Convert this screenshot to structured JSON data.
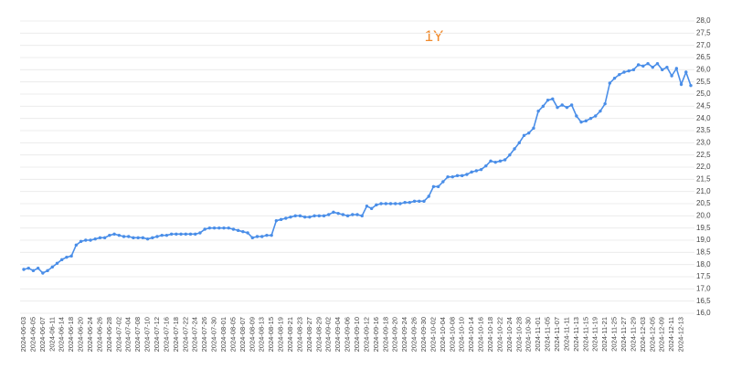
{
  "chart_data": {
    "type": "line",
    "title": "1Y",
    "categories": [
      "2024-06-03",
      null,
      "2024-06-05",
      null,
      "2024-06-07",
      null,
      "2024-06-11",
      null,
      "2024-06-14",
      null,
      "2024-06-18",
      null,
      "2024-06-20",
      null,
      "2024-06-24",
      null,
      "2024-06-26",
      null,
      "2024-06-28",
      null,
      "2024-07-02",
      null,
      "2024-07-04",
      null,
      "2024-07-08",
      null,
      "2024-07-10",
      null,
      "2024-07-12",
      null,
      "2024-07-16",
      null,
      "2024-07-18",
      null,
      "2024-07-22",
      null,
      "2024-07-24",
      null,
      "2024-07-26",
      null,
      "2024-07-30",
      null,
      "2024-08-01",
      null,
      "2024-08-05",
      null,
      "2024-08-07",
      null,
      "2024-08-09",
      null,
      "2024-08-13",
      null,
      "2024-08-15",
      null,
      "2024-08-19",
      null,
      "2024-08-21",
      null,
      "2024-08-23",
      null,
      "2024-08-27",
      null,
      "2024-08-29",
      null,
      "2024-09-02",
      null,
      "2024-09-04",
      null,
      "2024-09-06",
      null,
      "2024-09-10",
      null,
      "2024-09-12",
      null,
      "2024-09-16",
      null,
      "2024-09-18",
      null,
      "2024-09-20",
      null,
      "2024-09-24",
      null,
      "2024-09-26",
      null,
      "2024-09-30",
      null,
      "2024-10-02",
      null,
      "2024-10-04",
      null,
      "2024-10-08",
      null,
      "2024-10-10",
      null,
      "2024-10-14",
      null,
      "2024-10-16",
      null,
      "2024-10-18",
      null,
      "2024-10-22",
      null,
      "2024-10-24",
      null,
      "2024-10-28",
      null,
      "2024-10-30",
      null,
      "2024-11-01",
      null,
      "2024-11-05",
      null,
      "2024-11-07",
      null,
      "2024-11-11",
      null,
      "2024-11-13",
      null,
      "2024-11-15",
      null,
      "2024-11-19",
      null,
      "2024-11-21",
      null,
      "2024-11-25",
      null,
      "2024-11-27",
      null,
      "2024-11-29",
      null,
      "2024-12-03",
      null,
      "2024-12-05",
      null,
      "2024-12-09",
      null,
      "2024-12-11",
      null,
      "2024-12-13",
      null,
      null
    ],
    "series": [
      {
        "color": "#4a8ee8",
        "values": [
          17.8,
          17.85,
          17.75,
          17.85,
          17.65,
          17.75,
          17.9,
          18.05,
          18.2,
          18.3,
          18.35,
          18.8,
          18.95,
          19.0,
          19.0,
          19.05,
          19.1,
          19.1,
          19.2,
          19.25,
          19.2,
          19.15,
          19.15,
          19.1,
          19.1,
          19.1,
          19.05,
          19.1,
          19.15,
          19.2,
          19.2,
          19.25,
          19.25,
          19.25,
          19.25,
          19.25,
          19.25,
          19.3,
          19.45,
          19.5,
          19.5,
          19.5,
          19.5,
          19.5,
          19.45,
          19.4,
          19.35,
          19.3,
          19.1,
          19.15,
          19.15,
          19.2,
          19.2,
          19.8,
          19.85,
          19.9,
          19.95,
          20.0,
          20.0,
          19.95,
          19.95,
          20.0,
          20.0,
          20.0,
          20.05,
          20.15,
          20.1,
          20.05,
          20.0,
          20.05,
          20.05,
          20.0,
          20.4,
          20.3,
          20.45,
          20.5,
          20.5,
          20.5,
          20.5,
          20.5,
          20.55,
          20.55,
          20.6,
          20.6,
          20.6,
          20.8,
          21.2,
          21.2,
          21.4,
          21.6,
          21.6,
          21.65,
          21.65,
          21.7,
          21.8,
          21.85,
          21.9,
          22.05,
          22.25,
          22.2,
          22.25,
          22.3,
          22.5,
          22.75,
          23.0,
          23.3,
          23.4,
          23.6,
          24.3,
          24.5,
          24.75,
          24.8,
          24.45,
          24.55,
          24.45,
          24.55,
          24.1,
          23.85,
          23.9,
          24.0,
          24.1,
          24.3,
          24.6,
          25.45,
          25.65,
          25.8,
          25.9,
          25.95,
          26.0,
          26.2,
          26.15,
          26.25,
          26.1,
          26.25,
          26.0,
          26.1,
          25.75,
          26.05,
          25.4,
          25.9,
          25.35
        ]
      }
    ],
    "ylim": [
      16.0,
      28.0
    ],
    "yticks": [
      {
        "value": 16.0,
        "label": "16,0"
      },
      {
        "value": 16.5,
        "label": "16,5"
      },
      {
        "value": 17.0,
        "label": "17,0"
      },
      {
        "value": 17.5,
        "label": "17,5"
      },
      {
        "value": 18.0,
        "label": "18,0"
      },
      {
        "value": 18.5,
        "label": "18,5"
      },
      {
        "value": 19.0,
        "label": "19,0"
      },
      {
        "value": 19.5,
        "label": "19,5"
      },
      {
        "value": 20.0,
        "label": "20,0"
      },
      {
        "value": 20.5,
        "label": "20,5"
      },
      {
        "value": 21.0,
        "label": "21,0"
      },
      {
        "value": 21.5,
        "label": "21,5"
      },
      {
        "value": 22.0,
        "label": "22,0"
      },
      {
        "value": 22.5,
        "label": "22,5"
      },
      {
        "value": 23.0,
        "label": "23,0"
      },
      {
        "value": 23.5,
        "label": "23,5"
      },
      {
        "value": 24.0,
        "label": "24,0"
      },
      {
        "value": 24.5,
        "label": "24,5"
      },
      {
        "value": 25.0,
        "label": "25,0"
      },
      {
        "value": 25.5,
        "label": "25,5"
      },
      {
        "value": 26.0,
        "label": "26,0"
      },
      {
        "value": 26.5,
        "label": "26,5"
      },
      {
        "value": 27.0,
        "label": "27,0"
      },
      {
        "value": 27.5,
        "label": "27,5"
      },
      {
        "value": 28.0,
        "label": "28,0"
      }
    ],
    "grid": true,
    "title_color": "#f08a2c"
  }
}
